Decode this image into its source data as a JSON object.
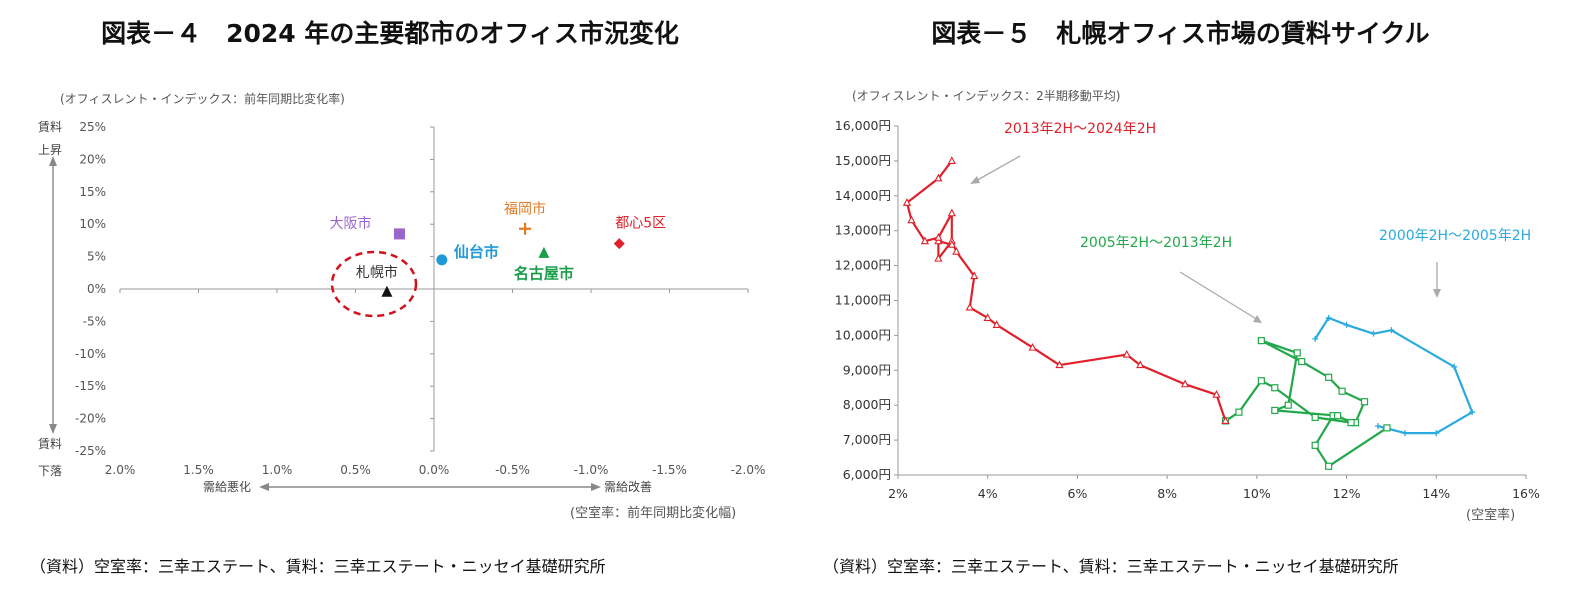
{
  "figures": [
    {
      "title": "図表－４　2024 年の主要都市のオフィス市況変化",
      "source": "（資料）空室率：三幸エステート、賃料：三幸エステート・ニッセイ基礎研究所",
      "y_caption": "(オフィスレント・インデックス：前年同期比変化率)",
      "x_caption": "(空室率：前年同期比変化幅)",
      "y_arrow_top": [
        "賃料",
        "上昇"
      ],
      "y_arrow_bottom": [
        "賃料",
        "下落"
      ],
      "x_arrow_left": "需給悪化",
      "x_arrow_right": "需給改善",
      "x_ticks": [
        "2.0%",
        "1.5%",
        "1.0%",
        "0.5%",
        "0.0%",
        "-0.5%",
        "-1.0%",
        "-1.5%",
        "-2.0%"
      ],
      "y_ticks": [
        "25%",
        "20%",
        "15%",
        "10%",
        "5%",
        "0%",
        "-5%",
        "-10%",
        "-15%",
        "-20%",
        "-25%"
      ]
    },
    {
      "title": "図表－５　札幌オフィス市場の賃料サイクル",
      "source": "（資料）空室率：三幸エステート、賃料：三幸エステート・ニッセイ基礎研究所",
      "y_caption": "(オフィスレント・インデックス：2半期移動平均)",
      "x_caption": "(空室率)",
      "x_ticks": [
        "2%",
        "4%",
        "6%",
        "8%",
        "10%",
        "12%",
        "14%",
        "16%"
      ],
      "y_ticks": [
        "16,000円",
        "15,000円",
        "14,000円",
        "13,000円",
        "12,000円",
        "11,000円",
        "10,000円",
        "9,000円",
        "8,000円",
        "7,000円",
        "6,000円"
      ]
    }
  ],
  "chart_data": [
    {
      "type": "scatter",
      "title": "図表－４　2024 年の主要都市のオフィス市況変化",
      "xlabel": "(空室率：前年同期比変化幅)",
      "ylabel": "(オフィスレント・インデックス：前年同期比変化率)",
      "xlim": [
        2.0,
        -2.0
      ],
      "ylim": [
        -25,
        25
      ],
      "x_reversed": true,
      "unit": "%",
      "grid": false,
      "points": [
        {
          "name": "大阪市",
          "x": 0.22,
          "y": 8.5,
          "color": "#9966cc",
          "marker": "square"
        },
        {
          "name": "福岡市",
          "x": -0.58,
          "y": 9.3,
          "color": "#e07b22",
          "marker": "plus"
        },
        {
          "name": "都心5区",
          "x": -1.18,
          "y": 7.0,
          "color": "#e0202a",
          "marker": "diamond"
        },
        {
          "name": "仙台市",
          "x": -0.05,
          "y": 4.5,
          "color": "#1f9ad6",
          "marker": "circle"
        },
        {
          "name": "名古屋市",
          "x": -0.7,
          "y": 5.5,
          "color": "#1a9e4a",
          "marker": "triangle"
        },
        {
          "name": "札幌市",
          "x": 0.3,
          "y": -0.5,
          "color": "#111111",
          "marker": "triangle"
        }
      ],
      "highlight": "札幌市"
    },
    {
      "type": "line",
      "title": "図表－５　札幌オフィス市場の賃料サイクル",
      "xlabel": "(空室率)",
      "ylabel": "(オフィスレント・インデックス：2半期移動平均)",
      "xlim": [
        2,
        16
      ],
      "ylim": [
        6000,
        16000
      ],
      "grid": false,
      "series": [
        {
          "name": "2000年2H～2005年2H",
          "color": "#2aaadf",
          "marker": "plus",
          "points": [
            [
              11.3,
              9900
            ],
            [
              11.6,
              10500
            ],
            [
              12.0,
              10300
            ],
            [
              12.6,
              10050
            ],
            [
              13.0,
              10150
            ],
            [
              14.4,
              9100
            ],
            [
              14.8,
              7800
            ],
            [
              14.0,
              7200
            ],
            [
              13.3,
              7200
            ],
            [
              12.7,
              7400
            ]
          ]
        },
        {
          "name": "2005年2H～2013年2H",
          "color": "#22a84a",
          "marker": "square",
          "points": [
            [
              12.9,
              7350
            ],
            [
              11.6,
              6250
            ],
            [
              11.3,
              6850
            ],
            [
              11.7,
              7700
            ],
            [
              12.2,
              7500
            ],
            [
              12.4,
              8100
            ],
            [
              11.9,
              8400
            ],
            [
              11.6,
              8800
            ],
            [
              11.0,
              9250
            ],
            [
              10.1,
              9850
            ],
            [
              10.9,
              9500
            ],
            [
              10.7,
              8000
            ],
            [
              10.4,
              7850
            ],
            [
              11.8,
              7700
            ],
            [
              12.1,
              7500
            ],
            [
              11.3,
              7650
            ],
            [
              10.4,
              8500
            ],
            [
              10.1,
              8700
            ],
            [
              9.6,
              7800
            ],
            [
              9.3,
              7550
            ]
          ]
        },
        {
          "name": "2013年2H～2024年2H",
          "color": "#e0202a",
          "marker": "triangle",
          "points": [
            [
              9.3,
              7550
            ],
            [
              9.1,
              8300
            ],
            [
              8.4,
              8600
            ],
            [
              7.4,
              9150
            ],
            [
              7.1,
              9450
            ],
            [
              5.6,
              9150
            ],
            [
              5.0,
              9650
            ],
            [
              4.2,
              10300
            ],
            [
              4.0,
              10500
            ],
            [
              3.6,
              10800
            ],
            [
              3.7,
              11700
            ],
            [
              3.3,
              12400
            ],
            [
              3.2,
              12700
            ],
            [
              2.9,
              12200
            ],
            [
              2.9,
              12700
            ],
            [
              3.2,
              12600
            ],
            [
              3.2,
              13500
            ],
            [
              2.9,
              12800
            ],
            [
              2.6,
              12700
            ],
            [
              2.3,
              13300
            ],
            [
              2.2,
              13800
            ],
            [
              2.9,
              14500
            ],
            [
              3.2,
              15000
            ]
          ]
        }
      ],
      "annotations": [
        {
          "text": "2013年2H～2024年2H",
          "color": "#e0202a"
        },
        {
          "text": "2005年2H～2013年2H",
          "color": "#22a84a"
        },
        {
          "text": "2000年2H～2005年2H",
          "color": "#2aaadf"
        }
      ]
    }
  ]
}
